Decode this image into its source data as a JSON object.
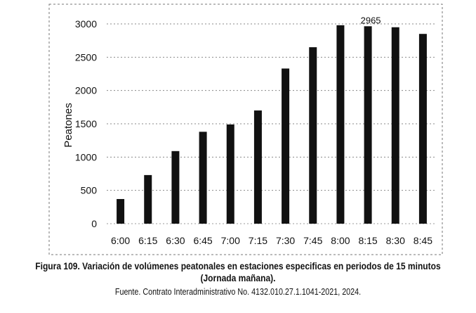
{
  "chart_data": {
    "type": "bar",
    "categories": [
      "6:00",
      "6:15",
      "6:30",
      "6:45",
      "7:00",
      "7:15",
      "7:30",
      "7:45",
      "8:00",
      "8:15",
      "8:30",
      "8:45"
    ],
    "values": [
      370,
      730,
      1090,
      1380,
      1490,
      1700,
      2330,
      2650,
      2980,
      2965,
      2950,
      2850
    ],
    "title": "",
    "xlabel": "",
    "ylabel": "Peatones",
    "ylim": [
      0,
      3000
    ],
    "yticks": [
      0,
      500,
      1000,
      1500,
      2000,
      2500,
      3000
    ],
    "grid": "horizontal dashed",
    "legend": "none",
    "bar_color": "#111111",
    "data_labels": [
      {
        "category": "8:15",
        "text": "2965"
      }
    ]
  },
  "caption": {
    "title": "Figura 109. Variación de volúmenes peatonales en estaciones especificas en periodos de 15 minutos (Jornada mañana).",
    "source": "Fuente. Contrato Interadministrativo No. 4132.010.27.1.1041-2021, 2024."
  }
}
